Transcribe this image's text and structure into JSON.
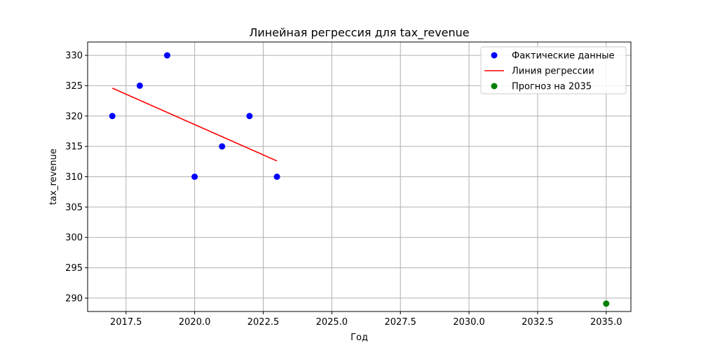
{
  "chart_data": {
    "type": "scatter",
    "title": "Линейная регрессия для tax_revenue",
    "xlabel": "Год",
    "ylabel": "tax_revenue",
    "xlim": [
      2016.1,
      2035.9
    ],
    "ylim": [
      287.8,
      332.2
    ],
    "x_ticks": [
      2017.5,
      2020.0,
      2022.5,
      2025.0,
      2027.5,
      2030.0,
      2032.5,
      2035.0
    ],
    "x_tick_labels": [
      "2017.5",
      "2020.0",
      "2022.5",
      "2025.0",
      "2027.5",
      "2030.0",
      "2032.5",
      "2035.0"
    ],
    "y_ticks": [
      290,
      295,
      300,
      305,
      310,
      315,
      320,
      325,
      330
    ],
    "y_tick_labels": [
      "290",
      "295",
      "300",
      "305",
      "310",
      "315",
      "320",
      "325",
      "330"
    ],
    "grid": true,
    "legend_position": "top-right",
    "series": [
      {
        "name": "Фактические данные",
        "kind": "scatter",
        "color": "#0000ff",
        "x": [
          2017,
          2018,
          2019,
          2020,
          2021,
          2022,
          2023
        ],
        "y": [
          320,
          325,
          330,
          310,
          315,
          320,
          310
        ]
      },
      {
        "name": "Линия регрессии",
        "kind": "line",
        "color": "#ff0000",
        "x": [
          2017,
          2023
        ],
        "y": [
          324.6,
          312.6
        ]
      },
      {
        "name": "Прогноз на 2035",
        "kind": "scatter",
        "color": "#008000",
        "x": [
          2035
        ],
        "y": [
          289.1
        ]
      }
    ]
  }
}
